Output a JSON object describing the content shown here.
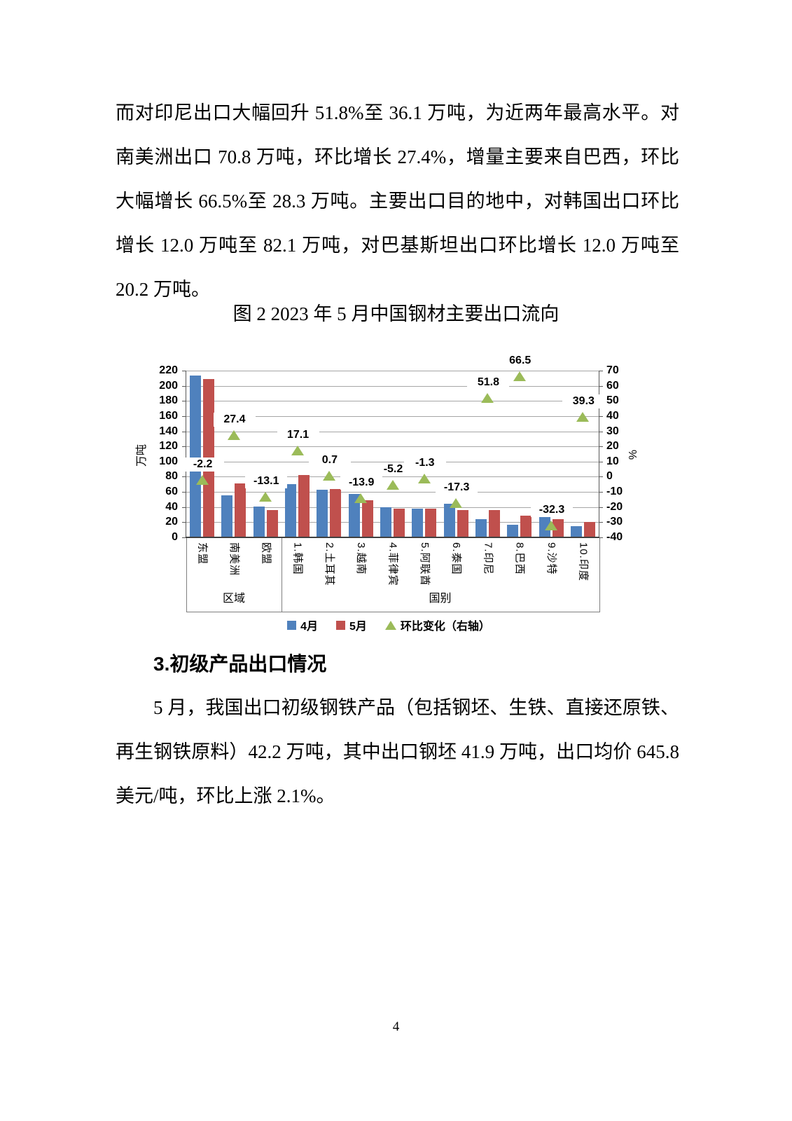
{
  "page": {
    "number": "4"
  },
  "paragraphs": {
    "p1": "而对印尼出口大幅回升 51.8%至 36.1 万吨，为近两年最高水平。对南美洲出口 70.8 万吨，环比增长 27.4%，增量主要来自巴西，环比大幅增长 66.5%至 28.3 万吨。主要出口目的地中，对韩国出口环比增长 12.0 万吨至 82.1 万吨，对巴基斯坦出口环比增长 12.0 万吨至 20.2 万吨。",
    "p2": "5 月，我国出口初级钢铁产品（包括钢坯、生铁、直接还原铁、再生钢铁原料）42.2 万吨，其中出口钢坯 41.9 万吨，出口均价 645.8 美元/吨，环比上涨 2.1%。"
  },
  "section": {
    "heading": "3.初级产品出口情况"
  },
  "chart_data": {
    "type": "bar",
    "title": "图 2 2023 年 5 月中国钢材主要出口流向",
    "categories": [
      "东盟",
      "南美洲",
      "欧盟",
      "1.韩国",
      "2.土耳其",
      "3.越南",
      "4.菲律宾",
      "5.阿联酋",
      "6.泰国",
      "7.印尼",
      "8.巴西",
      "9.沙特",
      "10.印度"
    ],
    "groups": [
      {
        "label": "区域",
        "span": 3
      },
      {
        "label": "国别",
        "span": 10
      }
    ],
    "series": [
      {
        "name": "4月",
        "type": "bar",
        "axis": "left",
        "color": "#4F81BD",
        "values": [
          213.3,
          55.6,
          41.0,
          70.1,
          63.3,
          57.0,
          40.0,
          38.0,
          44.0,
          23.8,
          17.0,
          35.5,
          14.5
        ]
      },
      {
        "name": "5月",
        "type": "bar",
        "axis": "left",
        "color": "#C0504D",
        "values": [
          208.6,
          70.8,
          35.6,
          82.1,
          63.7,
          49.1,
          37.9,
          37.5,
          36.4,
          36.1,
          28.3,
          24.0,
          20.2
        ]
      },
      {
        "name": "环比变化（右轴）",
        "type": "triangle",
        "axis": "right",
        "color": "#9BBB59",
        "values": [
          -2.2,
          27.4,
          -13.1,
          17.1,
          0.7,
          -13.9,
          -5.2,
          -1.3,
          -17.3,
          51.8,
          66.5,
          -32.3,
          39.3
        ]
      }
    ],
    "left_axis": {
      "title": "万吨",
      "min": 0,
      "max": 220,
      "step": 20
    },
    "right_axis": {
      "title": "%",
      "min": -40,
      "max": 70,
      "step": 10
    },
    "legend_position": "bottom",
    "grid": true
  }
}
